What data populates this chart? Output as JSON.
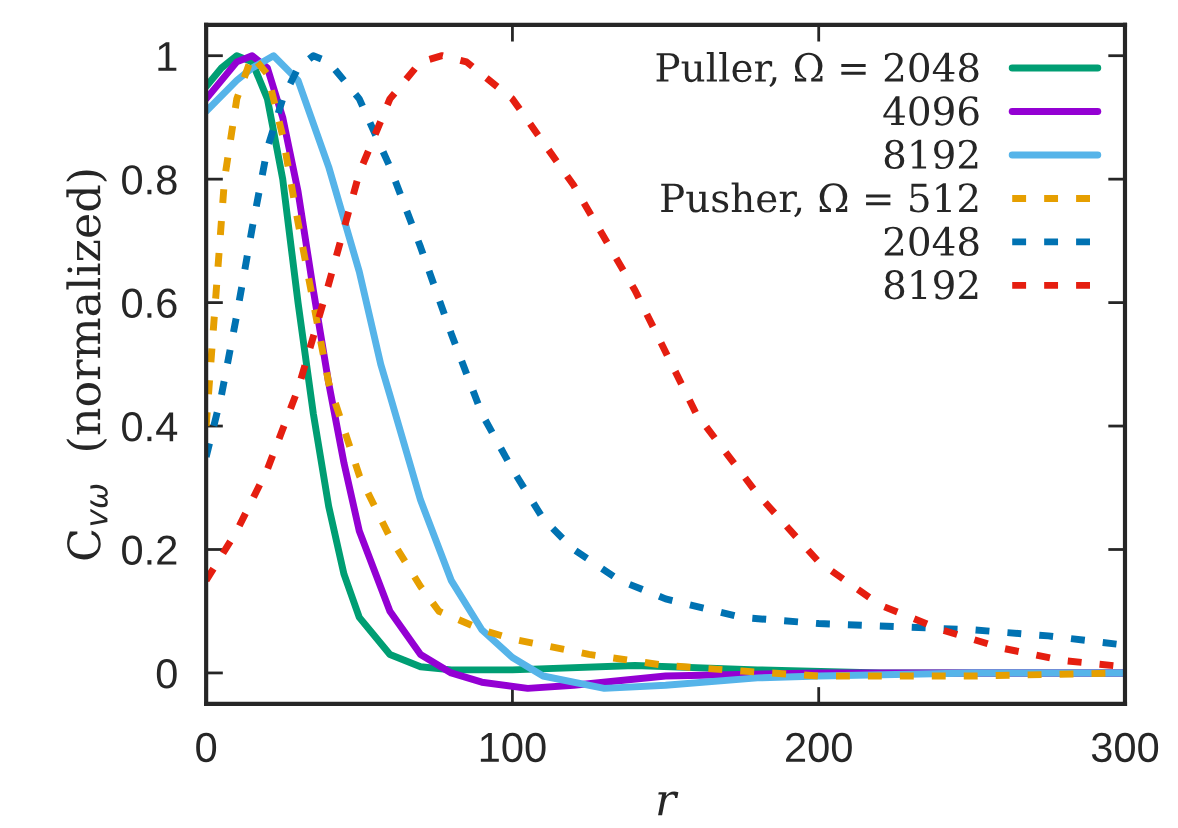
{
  "chart_data": {
    "type": "line",
    "xlabel": "r",
    "ylabel": "C$_{vω}$  (normalized)",
    "xlim": [
      0,
      300
    ],
    "ylim": [
      -0.05,
      1.05
    ],
    "xticks": [
      0,
      100,
      200,
      300
    ],
    "yticks": [
      0,
      0.2,
      0.4,
      0.6,
      0.8,
      1
    ],
    "grid": false,
    "legend": "top right",
    "marker": "none",
    "series": [
      {
        "name": "Puller, Ω = 2048",
        "color": "#009e73",
        "line_style": "solid",
        "x": [
          0,
          5,
          10,
          15,
          20,
          25,
          30,
          35,
          40,
          45,
          50,
          60,
          70,
          80,
          100,
          140,
          180,
          220,
          300
        ],
        "values": [
          0.95,
          0.98,
          1,
          0.99,
          0.93,
          0.8,
          0.6,
          0.42,
          0.27,
          0.16,
          0.09,
          0.03,
          0.01,
          0.005,
          0.005,
          0.012,
          0.005,
          0,
          0
        ]
      },
      {
        "name": "4096",
        "color": "#9400d3",
        "line_style": "solid",
        "x": [
          0,
          10,
          15,
          20,
          25,
          30,
          35,
          40,
          45,
          50,
          60,
          70,
          80,
          90,
          105,
          120,
          150,
          200,
          300
        ],
        "values": [
          0.93,
          0.99,
          1,
          0.98,
          0.9,
          0.78,
          0.62,
          0.47,
          0.34,
          0.23,
          0.1,
          0.03,
          0,
          -0.015,
          -0.025,
          -0.02,
          -0.005,
          0,
          0
        ]
      },
      {
        "name": "8192",
        "color": "#56b4e9",
        "line_style": "solid",
        "x": [
          0,
          10,
          15,
          22,
          30,
          40,
          50,
          57,
          60,
          70,
          80,
          90,
          100,
          110,
          130,
          150,
          180,
          200,
          250,
          300
        ],
        "values": [
          0.91,
          0.96,
          0.98,
          1,
          0.96,
          0.82,
          0.65,
          0.5,
          0.45,
          0.28,
          0.15,
          0.07,
          0.025,
          -0.005,
          -0.025,
          -0.02,
          -0.008,
          -0.005,
          0,
          0
        ]
      },
      {
        "name": "Pusher, Ω = 512",
        "color": "#e69f00",
        "line_style": "dashed",
        "x": [
          0,
          3,
          6,
          10,
          15,
          20,
          25,
          30,
          35,
          40,
          50,
          60,
          70,
          76,
          90,
          100,
          125,
          150,
          175,
          200,
          250,
          300
        ],
        "values": [
          0.4,
          0.6,
          0.8,
          0.93,
          1,
          0.97,
          0.87,
          0.73,
          0.6,
          0.47,
          0.32,
          0.22,
          0.14,
          0.1,
          0.07,
          0.055,
          0.03,
          0.012,
          0.003,
          -0.005,
          -0.005,
          0
        ]
      },
      {
        "name": "2048",
        "color": "#0072b2",
        "line_style": "dashed",
        "x": [
          0,
          5,
          10,
          15,
          20,
          25,
          30,
          35,
          40,
          50,
          60,
          70,
          80,
          90,
          100,
          110,
          120,
          135,
          150,
          175,
          200,
          225,
          250,
          275,
          300
        ],
        "values": [
          0.35,
          0.45,
          0.58,
          0.72,
          0.85,
          0.93,
          0.98,
          1,
          0.99,
          0.93,
          0.82,
          0.69,
          0.55,
          0.42,
          0.33,
          0.25,
          0.2,
          0.15,
          0.12,
          0.09,
          0.08,
          0.075,
          0.07,
          0.06,
          0.045
        ]
      },
      {
        "name": "8192",
        "color": "#e51e10",
        "line_style": "dashed",
        "x": [
          0,
          10,
          20,
          30,
          40,
          50,
          60,
          70,
          77,
          85,
          100,
          120,
          140,
          160,
          180,
          200,
          220,
          240,
          260,
          280,
          300
        ],
        "values": [
          0.15,
          0.23,
          0.33,
          0.46,
          0.63,
          0.81,
          0.93,
          0.99,
          1,
          0.99,
          0.93,
          0.79,
          0.62,
          0.42,
          0.29,
          0.18,
          0.11,
          0.07,
          0.04,
          0.02,
          0.01
        ]
      }
    ]
  }
}
